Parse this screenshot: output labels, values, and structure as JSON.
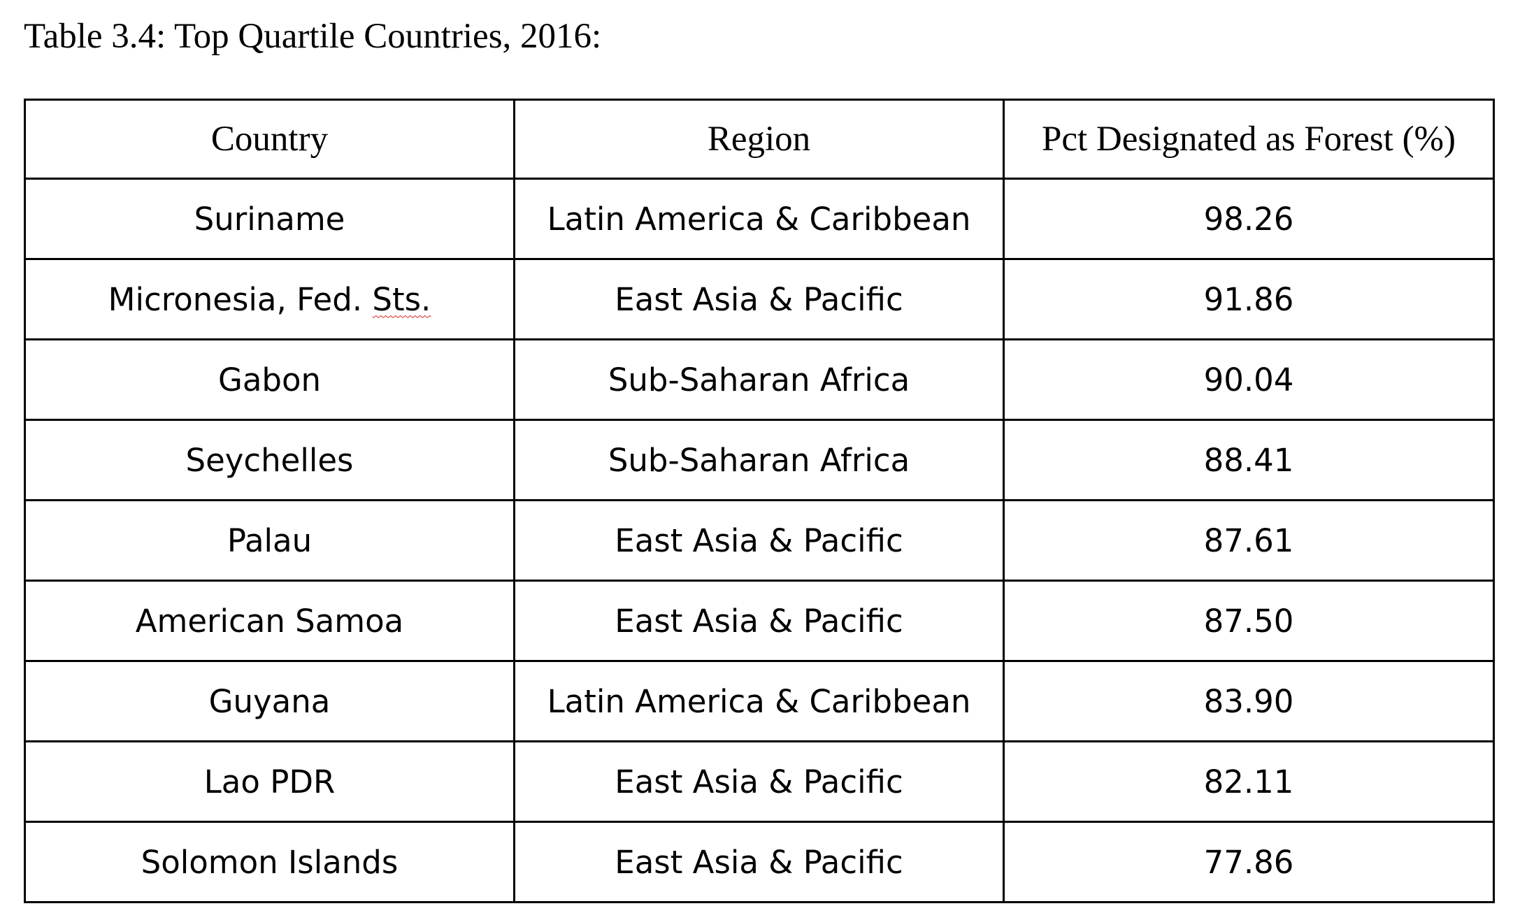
{
  "document": {
    "caption": "Table 3.4: Top Quartile Countries, 2016:"
  },
  "table": {
    "headers": {
      "country": "Country",
      "region": "Region",
      "pct": "Pct Designated as Forest (%)"
    },
    "rows": [
      {
        "country": "Suriname",
        "region": "Latin America & Caribbean",
        "pct": "98.26"
      },
      {
        "country_main": "Micronesia, Fed. ",
        "country_flagged": "Sts.",
        "region": "East Asia & Pacific",
        "pct": "91.86"
      },
      {
        "country": "Gabon",
        "region": "Sub-Saharan Africa",
        "pct": "90.04"
      },
      {
        "country": "Seychelles",
        "region": "Sub-Saharan Africa",
        "pct": "88.41"
      },
      {
        "country": "Palau",
        "region": "East Asia & Pacific",
        "pct": "87.61"
      },
      {
        "country": "American Samoa",
        "region": "East Asia & Pacific",
        "pct": "87.50"
      },
      {
        "country": "Guyana",
        "region": "Latin America & Caribbean",
        "pct": "83.90"
      },
      {
        "country": "Lao PDR",
        "region": "East Asia & Pacific",
        "pct": "82.11"
      },
      {
        "country": "Solomon Islands",
        "region": "East Asia & Pacific",
        "pct": "77.86"
      }
    ]
  },
  "colors": {
    "text": "#000000",
    "border": "#000000",
    "background": "#ffffff",
    "spellcheck_underline": "#d62020"
  }
}
